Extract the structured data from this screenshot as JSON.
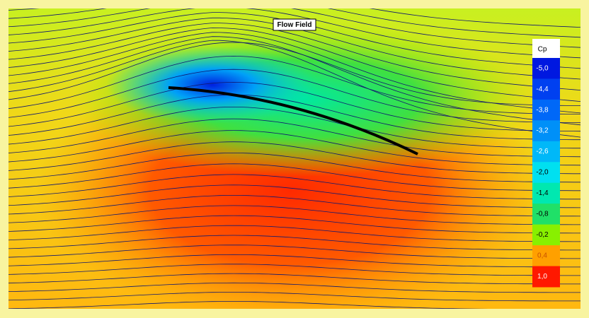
{
  "window": {
    "title": "Flow Field"
  },
  "legend": {
    "title": "Cp",
    "labels": [
      "-5,0",
      "-4,4",
      "-3,8",
      "-3,2",
      "-2,6",
      "-2,0",
      "-1,4",
      "-0,8",
      "-0,2",
      "0,4",
      "1,0"
    ],
    "colors": [
      "#0018e0",
      "#0040f0",
      "#0068f8",
      "#0090f8",
      "#00b8f8",
      "#00e0f0",
      "#00e8b0",
      "#20e068",
      "#88f000",
      "#ffa000",
      "#ff1800"
    ]
  }
}
